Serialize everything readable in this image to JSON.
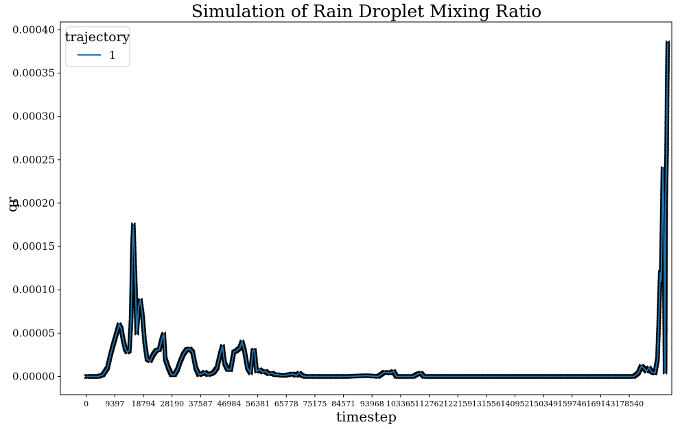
{
  "chart_data": {
    "type": "line",
    "title": "Simulation of Rain Droplet Mixing Ratio",
    "xlabel": "timestep",
    "ylabel": "qr",
    "xlim": [
      -8500,
      192500
    ],
    "ylim": [
      -2.1e-05,
      0.000409
    ],
    "x_ticks": [
      "0",
      "9397",
      "18794",
      "28190",
      "37587",
      "46984",
      "56381",
      "65778",
      "75175",
      "84571",
      "93968",
      "103365",
      "112762",
      "122159",
      "131556",
      "140952",
      "150349",
      "159746",
      "169143",
      "178540"
    ],
    "y_ticks": [
      "0.00000",
      "0.00005",
      "0.00010",
      "0.00015",
      "0.00020",
      "0.00025",
      "0.00030",
      "0.00035",
      "0.00040"
    ],
    "legend": {
      "title": "trajectory",
      "position": "upper-left"
    },
    "marker_color": "#000000",
    "series": [
      {
        "name": "1",
        "color": "#1f77b4",
        "points": [
          [
            0,
            0.0
          ],
          [
            4000,
            0.0
          ],
          [
            5500,
            2e-06
          ],
          [
            7000,
            1e-05
          ],
          [
            8000,
            2.5e-05
          ],
          [
            9000,
            3.8e-05
          ],
          [
            10000,
            5e-05
          ],
          [
            10800,
            6e-05
          ],
          [
            11500,
            5.5e-05
          ],
          [
            12000,
            4.5e-05
          ],
          [
            12800,
            3.2e-05
          ],
          [
            13500,
            2.8e-05
          ],
          [
            14200,
            3e-05
          ],
          [
            14800,
            7e-05
          ],
          [
            15200,
            0.00015
          ],
          [
            15500,
            0.000175
          ],
          [
            15800,
            0.00014
          ],
          [
            16200,
            0.0001
          ],
          [
            16600,
            5e-05
          ],
          [
            17200,
            8e-05
          ],
          [
            17800,
            8.8e-05
          ],
          [
            18500,
            7e-05
          ],
          [
            19200,
            4e-05
          ],
          [
            20000,
            2e-05
          ],
          [
            21000,
            1.8e-05
          ],
          [
            22000,
            2.5e-05
          ],
          [
            23000,
            3e-05
          ],
          [
            24000,
            3.1e-05
          ],
          [
            25000,
            4.5e-05
          ],
          [
            25500,
            4.9e-05
          ],
          [
            26000,
            2e-05
          ],
          [
            27000,
            1e-05
          ],
          [
            28000,
            2e-06
          ],
          [
            29000,
            2e-06
          ],
          [
            30000,
            8e-06
          ],
          [
            31000,
            1.8e-05
          ],
          [
            32000,
            2.6e-05
          ],
          [
            33000,
            3.1e-05
          ],
          [
            34000,
            3.2e-05
          ],
          [
            35000,
            2.8e-05
          ],
          [
            36000,
            1e-05
          ],
          [
            37000,
            2e-06
          ],
          [
            38000,
            3e-06
          ],
          [
            39000,
            5e-06
          ],
          [
            40000,
            2e-06
          ],
          [
            41000,
            3e-06
          ],
          [
            42000,
            5e-06
          ],
          [
            43000,
            1e-05
          ],
          [
            44000,
            2.5e-05
          ],
          [
            44800,
            3.5e-05
          ],
          [
            45500,
            1.5e-05
          ],
          [
            46500,
            8e-06
          ],
          [
            47500,
            8e-06
          ],
          [
            48500,
            2.8e-05
          ],
          [
            49500,
            3e-05
          ],
          [
            50500,
            3.3e-05
          ],
          [
            51200,
            4e-05
          ],
          [
            52000,
            3e-05
          ],
          [
            53000,
            1e-05
          ],
          [
            54000,
            4e-06
          ],
          [
            54800,
            3e-05
          ],
          [
            55300,
            3e-05
          ],
          [
            56000,
            6e-06
          ],
          [
            57000,
            8e-06
          ],
          [
            58000,
            5e-06
          ],
          [
            59000,
            6e-06
          ],
          [
            60000,
            3e-06
          ],
          [
            61000,
            4e-06
          ],
          [
            62000,
            2e-06
          ],
          [
            63000,
            2e-06
          ],
          [
            65000,
            1e-06
          ],
          [
            68000,
            3e-06
          ],
          [
            69000,
            1e-06
          ],
          [
            70000,
            4e-06
          ],
          [
            71000,
            1e-06
          ],
          [
            72000,
            0.0
          ],
          [
            73000,
            0.0
          ],
          [
            86000,
            0.0
          ],
          [
            92000,
            1e-06
          ],
          [
            96000,
            0.0
          ],
          [
            98000,
            5e-06
          ],
          [
            100000,
            4e-06
          ],
          [
            101000,
            6e-06
          ],
          [
            102000,
            0.0
          ],
          [
            107500,
            0.0
          ],
          [
            109000,
            3e-06
          ],
          [
            110000,
            4e-06
          ],
          [
            111000,
            0.0
          ],
          [
            180000,
            0.0
          ],
          [
            181500,
            4e-06
          ],
          [
            182500,
            1.2e-05
          ],
          [
            183500,
            9e-06
          ],
          [
            184200,
            6e-06
          ],
          [
            185000,
            1e-05
          ],
          [
            186000,
            5e-06
          ],
          [
            187000,
            4e-06
          ],
          [
            187800,
            2e-05
          ],
          [
            188300,
            7e-05
          ],
          [
            188700,
            0.00012
          ],
          [
            189000,
            0.00011
          ],
          [
            189200,
            0.00015
          ],
          [
            189600,
            0.00024
          ],
          [
            189900,
            0.00018
          ],
          [
            190100,
            0.0001
          ],
          [
            190300,
            5e-06
          ],
          [
            190500,
            0.0002
          ],
          [
            190800,
            0.00026
          ],
          [
            191000,
            0.00034
          ],
          [
            191200,
            0.000385
          ]
        ]
      }
    ]
  }
}
